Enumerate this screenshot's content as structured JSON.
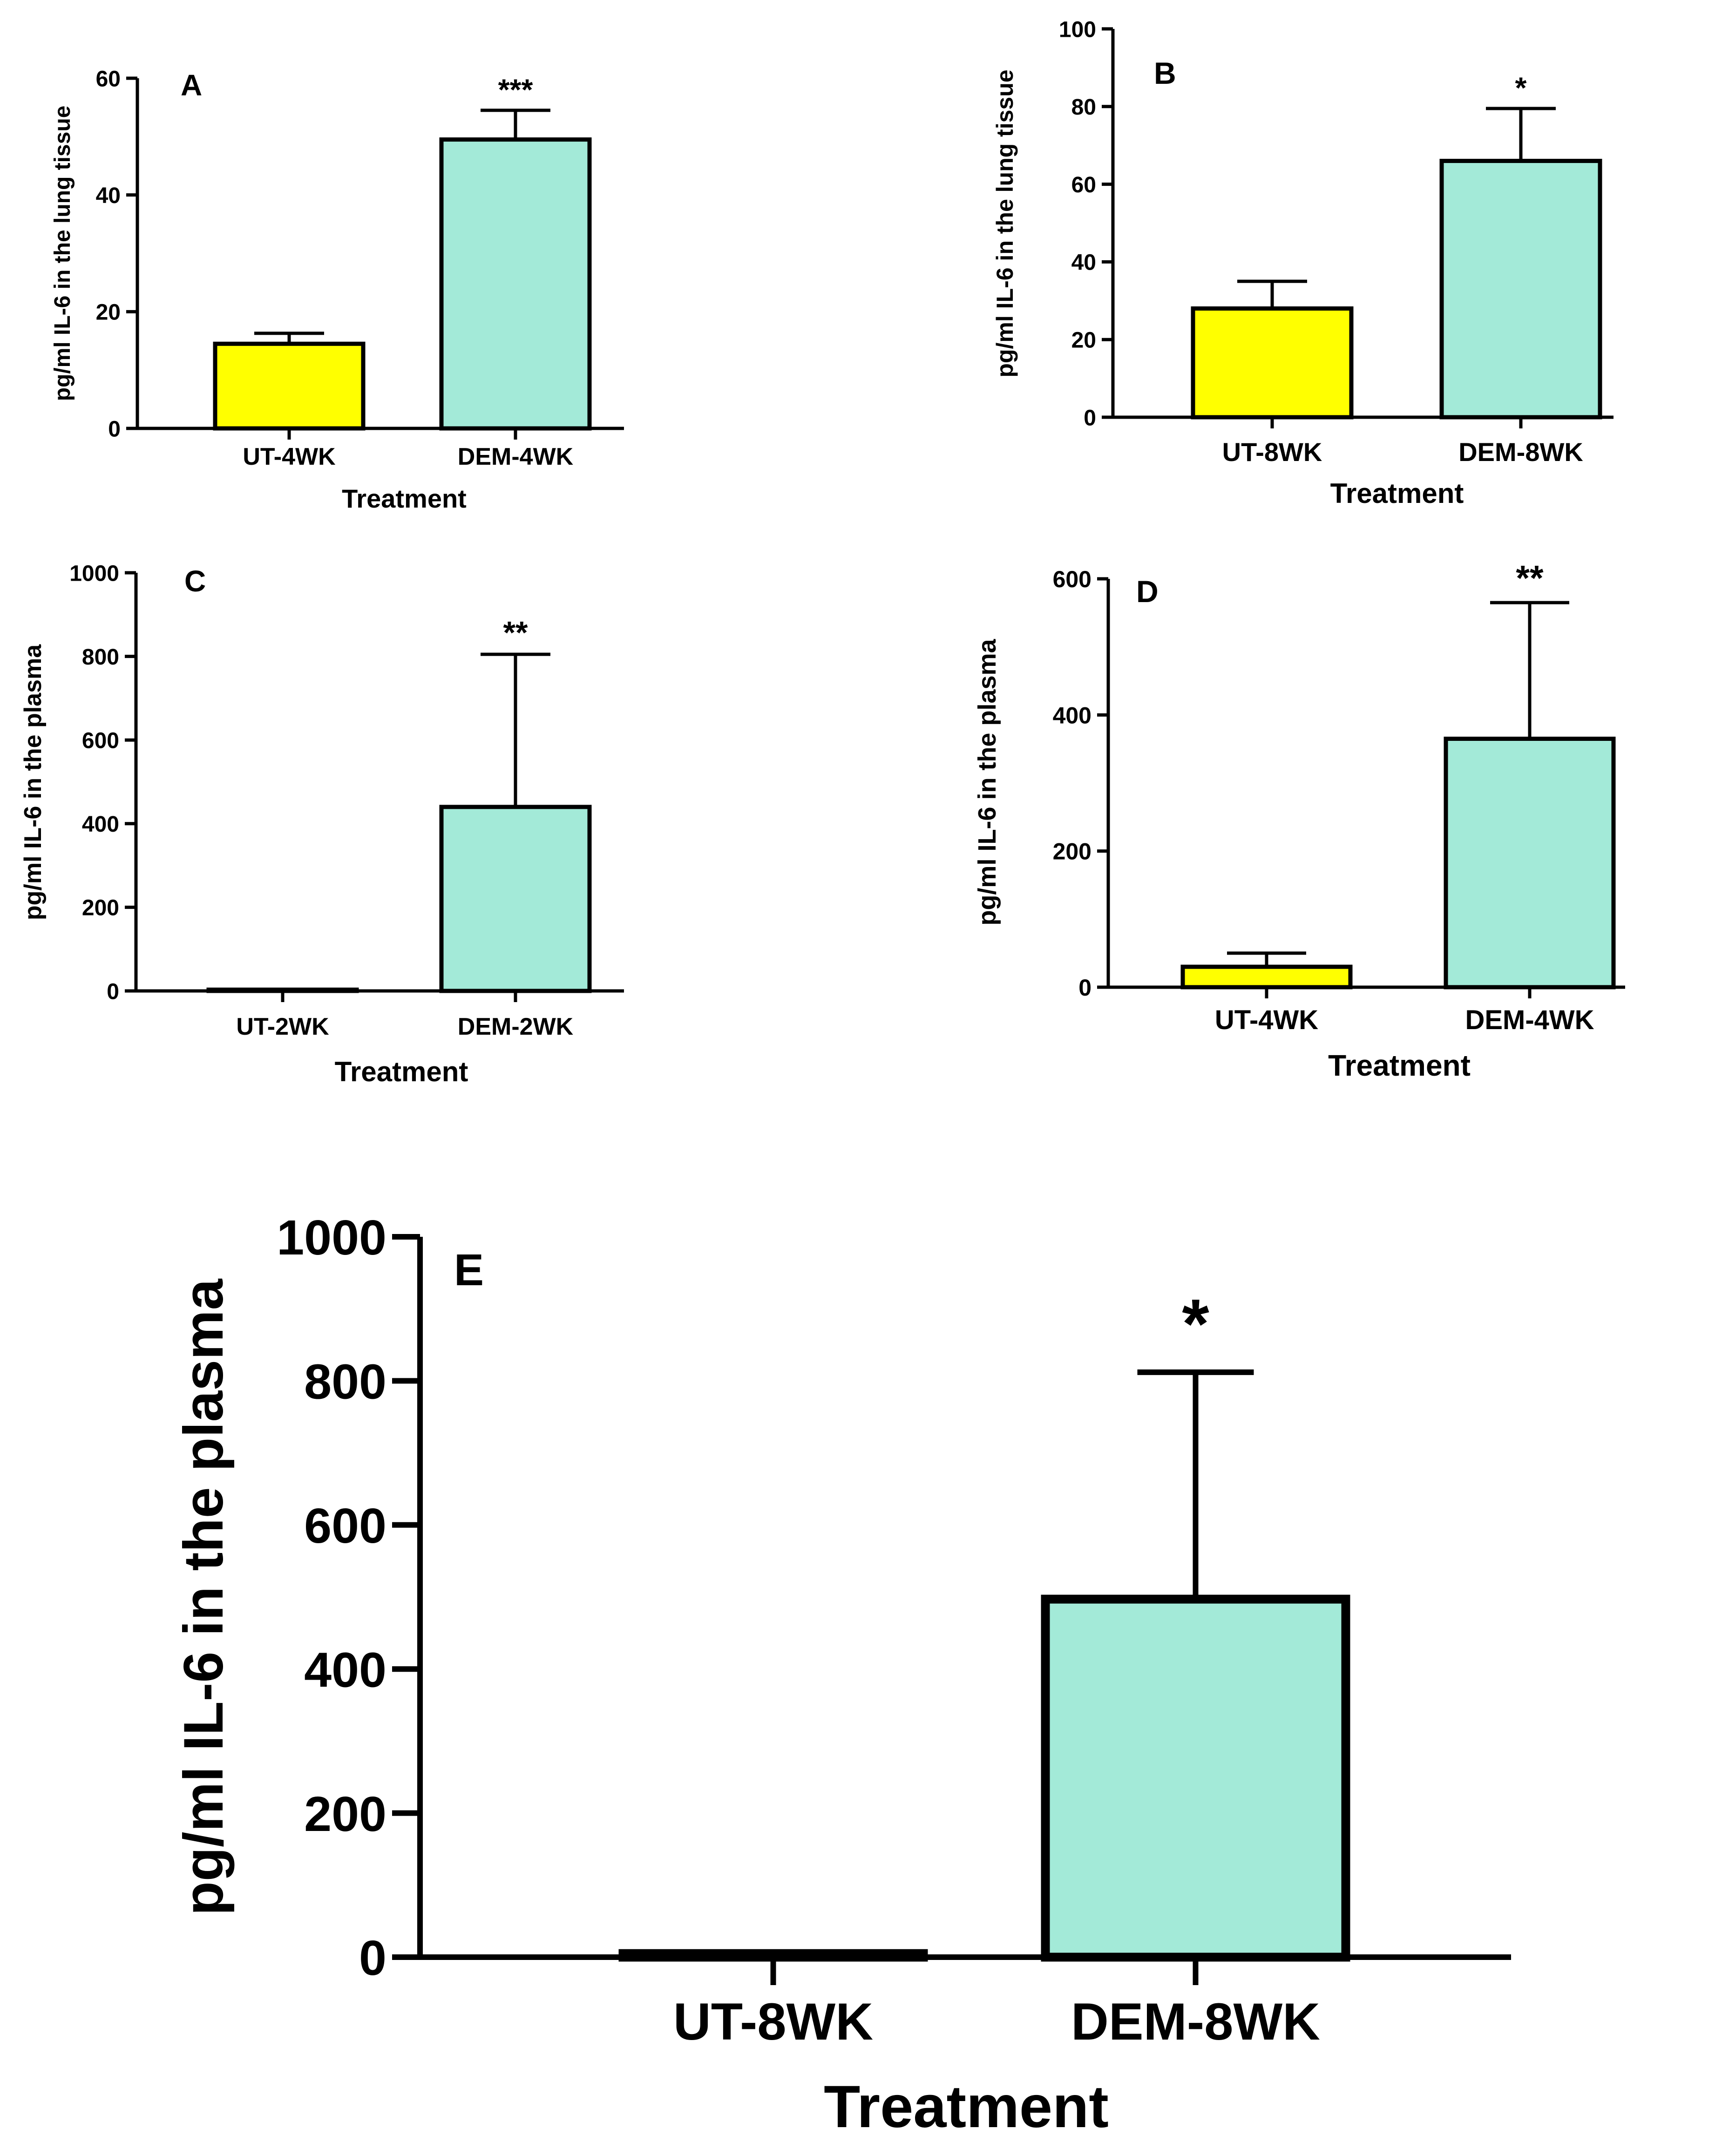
{
  "colors": {
    "control": "#ffff00",
    "treated": "#a3ead8",
    "stroke": "#000000"
  },
  "chart_data": [
    {
      "type": "bar",
      "panel_label": "A",
      "categories": [
        "UT-4WK",
        "DEM-4WK"
      ],
      "values": [
        14.5,
        49.5
      ],
      "errors": [
        1.8,
        5.0
      ],
      "significance": [
        "",
        "***"
      ],
      "ylim": [
        0,
        60
      ],
      "yticks": [
        "0",
        "20",
        "40",
        "60"
      ],
      "ylabel": "pg/ml IL-6 in the lung tissue",
      "xlabel": "Treatment"
    },
    {
      "type": "bar",
      "panel_label": "B",
      "categories": [
        "UT-8WK",
        "DEM-8WK"
      ],
      "values": [
        28,
        66
      ],
      "errors": [
        7,
        13.5
      ],
      "significance": [
        "",
        "*"
      ],
      "ylim": [
        0,
        100
      ],
      "yticks": [
        "0",
        "20",
        "40",
        "60",
        "80",
        "100"
      ],
      "ylabel": "pg/ml IL-6 in the lung tissue",
      "xlabel": "Treatment"
    },
    {
      "type": "bar",
      "panel_label": "C",
      "categories": [
        "UT-2WK",
        "DEM-2WK"
      ],
      "values": [
        3,
        440
      ],
      "errors": [
        0,
        365
      ],
      "significance": [
        "",
        "**"
      ],
      "ylim": [
        0,
        1000
      ],
      "yticks": [
        "0",
        "200",
        "400",
        "600",
        "800",
        "1000"
      ],
      "ylabel": "pg/ml IL-6 in the plasma",
      "xlabel": "Treatment"
    },
    {
      "type": "bar",
      "panel_label": "D",
      "categories": [
        "UT-4WK",
        "DEM-4WK"
      ],
      "values": [
        30,
        365
      ],
      "errors": [
        20,
        200
      ],
      "significance": [
        "",
        "**"
      ],
      "ylim": [
        0,
        600
      ],
      "yticks": [
        "0",
        "200",
        "400",
        "600"
      ],
      "ylabel": "pg/ml IL-6 in the plasma",
      "xlabel": "Treatment"
    },
    {
      "type": "bar",
      "panel_label": "E",
      "categories": [
        "UT-8WK",
        "DEM-8WK"
      ],
      "values": [
        5,
        497
      ],
      "errors": [
        0,
        315
      ],
      "significance": [
        "",
        "*"
      ],
      "ylim": [
        0,
        1000
      ],
      "yticks": [
        "0",
        "200",
        "400",
        "600",
        "800",
        "1000"
      ],
      "ylabel": "pg/ml IL-6 in the plasma",
      "xlabel": "Treatment"
    }
  ]
}
